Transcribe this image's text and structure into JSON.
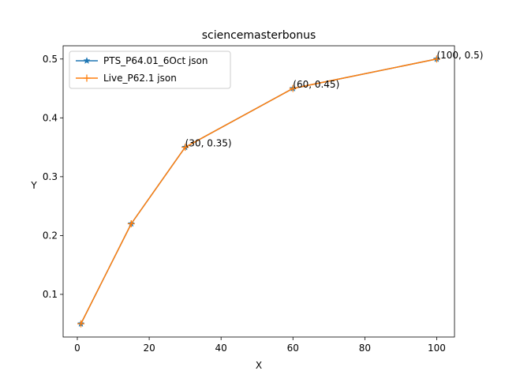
{
  "chart_data": {
    "type": "line",
    "title": "sciencemasterbonus",
    "xlabel": "X",
    "ylabel": "Y",
    "xlim": [
      -3.95,
      104.95
    ],
    "ylim": [
      0.0275,
      0.5225
    ],
    "xticks": [
      0,
      20,
      40,
      60,
      80,
      100
    ],
    "yticks": [
      0.1,
      0.2,
      0.3,
      0.4,
      0.5
    ],
    "xtick_labels": [
      "0",
      "20",
      "40",
      "60",
      "80",
      "100"
    ],
    "ytick_labels": [
      "0.1",
      "0.2",
      "0.3",
      "0.4",
      "0.5"
    ],
    "grid": false,
    "legend_position": "top-left",
    "series": [
      {
        "name": "PTS_P64.01_6Oct json",
        "color": "#1f77b4",
        "marker": "star",
        "x": [
          1,
          15,
          30,
          60,
          100
        ],
        "y": [
          0.05,
          0.22,
          0.35,
          0.45,
          0.5
        ]
      },
      {
        "name": "Live_P62.1 json",
        "color": "#ff7f0e",
        "marker": "plus",
        "x": [
          1,
          15,
          30,
          60,
          100
        ],
        "y": [
          0.05,
          0.22,
          0.35,
          0.45,
          0.5
        ]
      }
    ],
    "annotations": [
      {
        "text": "(30, 0.35)",
        "x": 30,
        "y": 0.35
      },
      {
        "text": "(60, 0.45)",
        "x": 60,
        "y": 0.45
      },
      {
        "text": "(100, 0.5)",
        "x": 100,
        "y": 0.5
      }
    ]
  }
}
